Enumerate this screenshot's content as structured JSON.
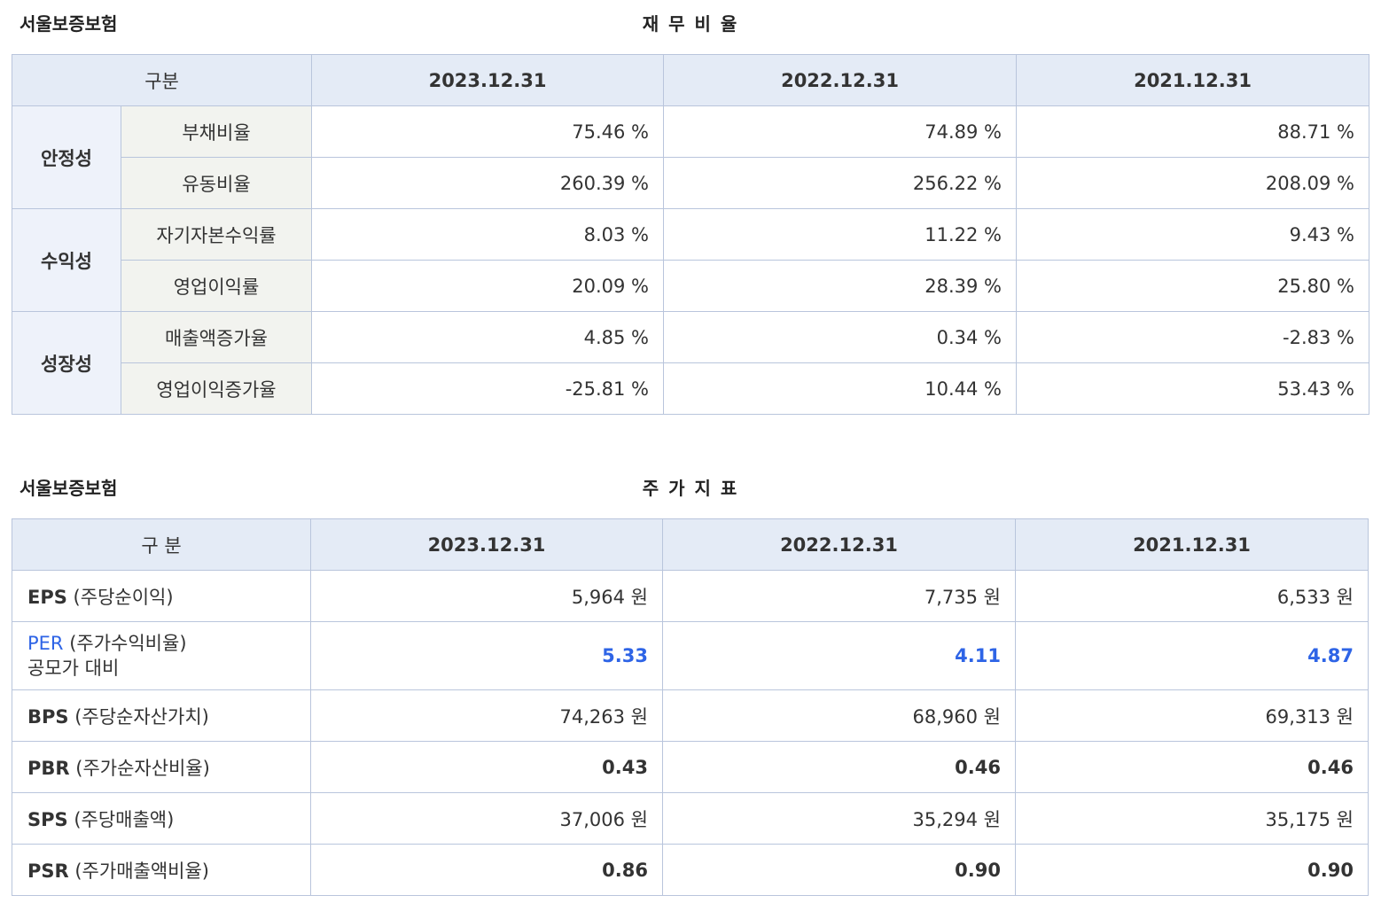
{
  "ratios": {
    "company": "서울보증보험",
    "title": "재 무 비 율",
    "header": [
      "구분",
      "2023.12.31",
      "2022.12.31",
      "2021.12.31"
    ],
    "groups": [
      {
        "category": "안정성",
        "rows": [
          {
            "label": "부채비율",
            "values": [
              "75.46 %",
              "74.89 %",
              "88.71 %"
            ]
          },
          {
            "label": "유동비율",
            "values": [
              "260.39 %",
              "256.22 %",
              "208.09 %"
            ]
          }
        ]
      },
      {
        "category": "수익성",
        "rows": [
          {
            "label": "자기자본수익률",
            "values": [
              "8.03 %",
              "11.22 %",
              "9.43 %"
            ]
          },
          {
            "label": "영업이익률",
            "values": [
              "20.09 %",
              "28.39 %",
              "25.80 %"
            ]
          }
        ]
      },
      {
        "category": "성장성",
        "rows": [
          {
            "label": "매출액증가율",
            "values": [
              "4.85 %",
              "0.34 %",
              "-2.83 %"
            ]
          },
          {
            "label": "영업이익증가율",
            "values": [
              "-25.81 %",
              "10.44 %",
              "53.43 %"
            ]
          }
        ]
      }
    ]
  },
  "stock": {
    "company": "서울보증보험",
    "title": "주 가 지 표",
    "header": [
      "구 분",
      "2023.12.31",
      "2022.12.31",
      "2021.12.31"
    ],
    "rows": [
      {
        "abbr": "EPS",
        "desc": " (주당순이익)",
        "values": [
          "5,964 원",
          "7,735 원",
          "6,533 원"
        ]
      },
      {
        "abbr": "PER",
        "desc": " (주가수익비율)",
        "desc2": "공모가 대비",
        "values": [
          "5.33",
          "4.11",
          "4.87"
        ]
      },
      {
        "abbr": "BPS",
        "desc": " (주당순자산가치)",
        "values": [
          "74,263 원",
          "68,960 원",
          "69,313 원"
        ]
      },
      {
        "abbr": "PBR",
        "desc": " (주가순자산비율)",
        "values": [
          "0.43",
          "0.46",
          "0.46"
        ]
      },
      {
        "abbr": "SPS",
        "desc": " (주당매출액)",
        "values": [
          "37,006 원",
          "35,294 원",
          "35,175 원"
        ]
      },
      {
        "abbr": "PSR",
        "desc": " (주가매출액비율)",
        "values": [
          "0.86",
          "0.90",
          "0.90"
        ]
      }
    ]
  },
  "colors": {
    "header_bg": "#e4ebf6",
    "border": "#b9c5dc",
    "accent_blue": "#2e64e6"
  }
}
